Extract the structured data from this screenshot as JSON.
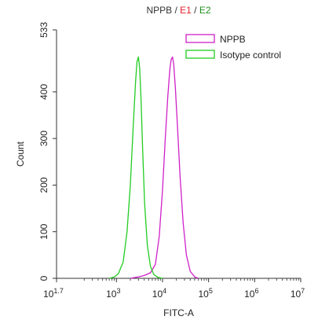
{
  "chart_data": {
    "type": "line",
    "title_parts": [
      {
        "text": "NPPB",
        "color": "#333333"
      },
      {
        "text": " / ",
        "color": "#333333"
      },
      {
        "text": "E1",
        "color": "#e0202a"
      },
      {
        "text": " / ",
        "color": "#333333"
      },
      {
        "text": "E2",
        "color": "#1f8f1f"
      }
    ],
    "xlabel": "FITC-A",
    "ylabel": "Count",
    "x_scale": "log",
    "xlim": [
      50.1,
      10000000
    ],
    "ylim": [
      0,
      533
    ],
    "x_ticks": [
      {
        "base": "10",
        "exp": "1.7",
        "value": 50.1
      },
      {
        "base": "10",
        "exp": "3",
        "value": 1000
      },
      {
        "base": "10",
        "exp": "4",
        "value": 10000
      },
      {
        "base": "10",
        "exp": "5",
        "value": 100000
      },
      {
        "base": "10",
        "exp": "6",
        "value": 1000000
      },
      {
        "base": "10",
        "exp": "7",
        "value": 10000000
      }
    ],
    "y_ticks": [
      0,
      100,
      200,
      300,
      400,
      533
    ],
    "grid": false,
    "legend_position": "top-right",
    "series": [
      {
        "name": "NPPB",
        "color": "#d020c8",
        "x": [
          2000,
          3000,
          4000,
          5500,
          7000,
          8500,
          10000,
          11500,
          13000,
          14500,
          15500,
          16500,
          17500,
          19000,
          21000,
          24000,
          28000,
          33000,
          40000,
          50000,
          60000
        ],
        "y": [
          0,
          3,
          6,
          12,
          30,
          90,
          190,
          300,
          390,
          450,
          470,
          475,
          460,
          410,
          330,
          220,
          120,
          50,
          15,
          3,
          0
        ]
      },
      {
        "name": "Isotype control",
        "color": "#22cc22",
        "x": [
          700,
          900,
          1100,
          1400,
          1700,
          2000,
          2300,
          2600,
          2800,
          3000,
          3200,
          3400,
          3700,
          4100,
          4700,
          5500,
          6500,
          8000,
          10000
        ],
        "y": [
          0,
          3,
          10,
          35,
          100,
          200,
          320,
          420,
          465,
          475,
          450,
          390,
          280,
          160,
          70,
          25,
          8,
          2,
          0
        ]
      }
    ]
  }
}
